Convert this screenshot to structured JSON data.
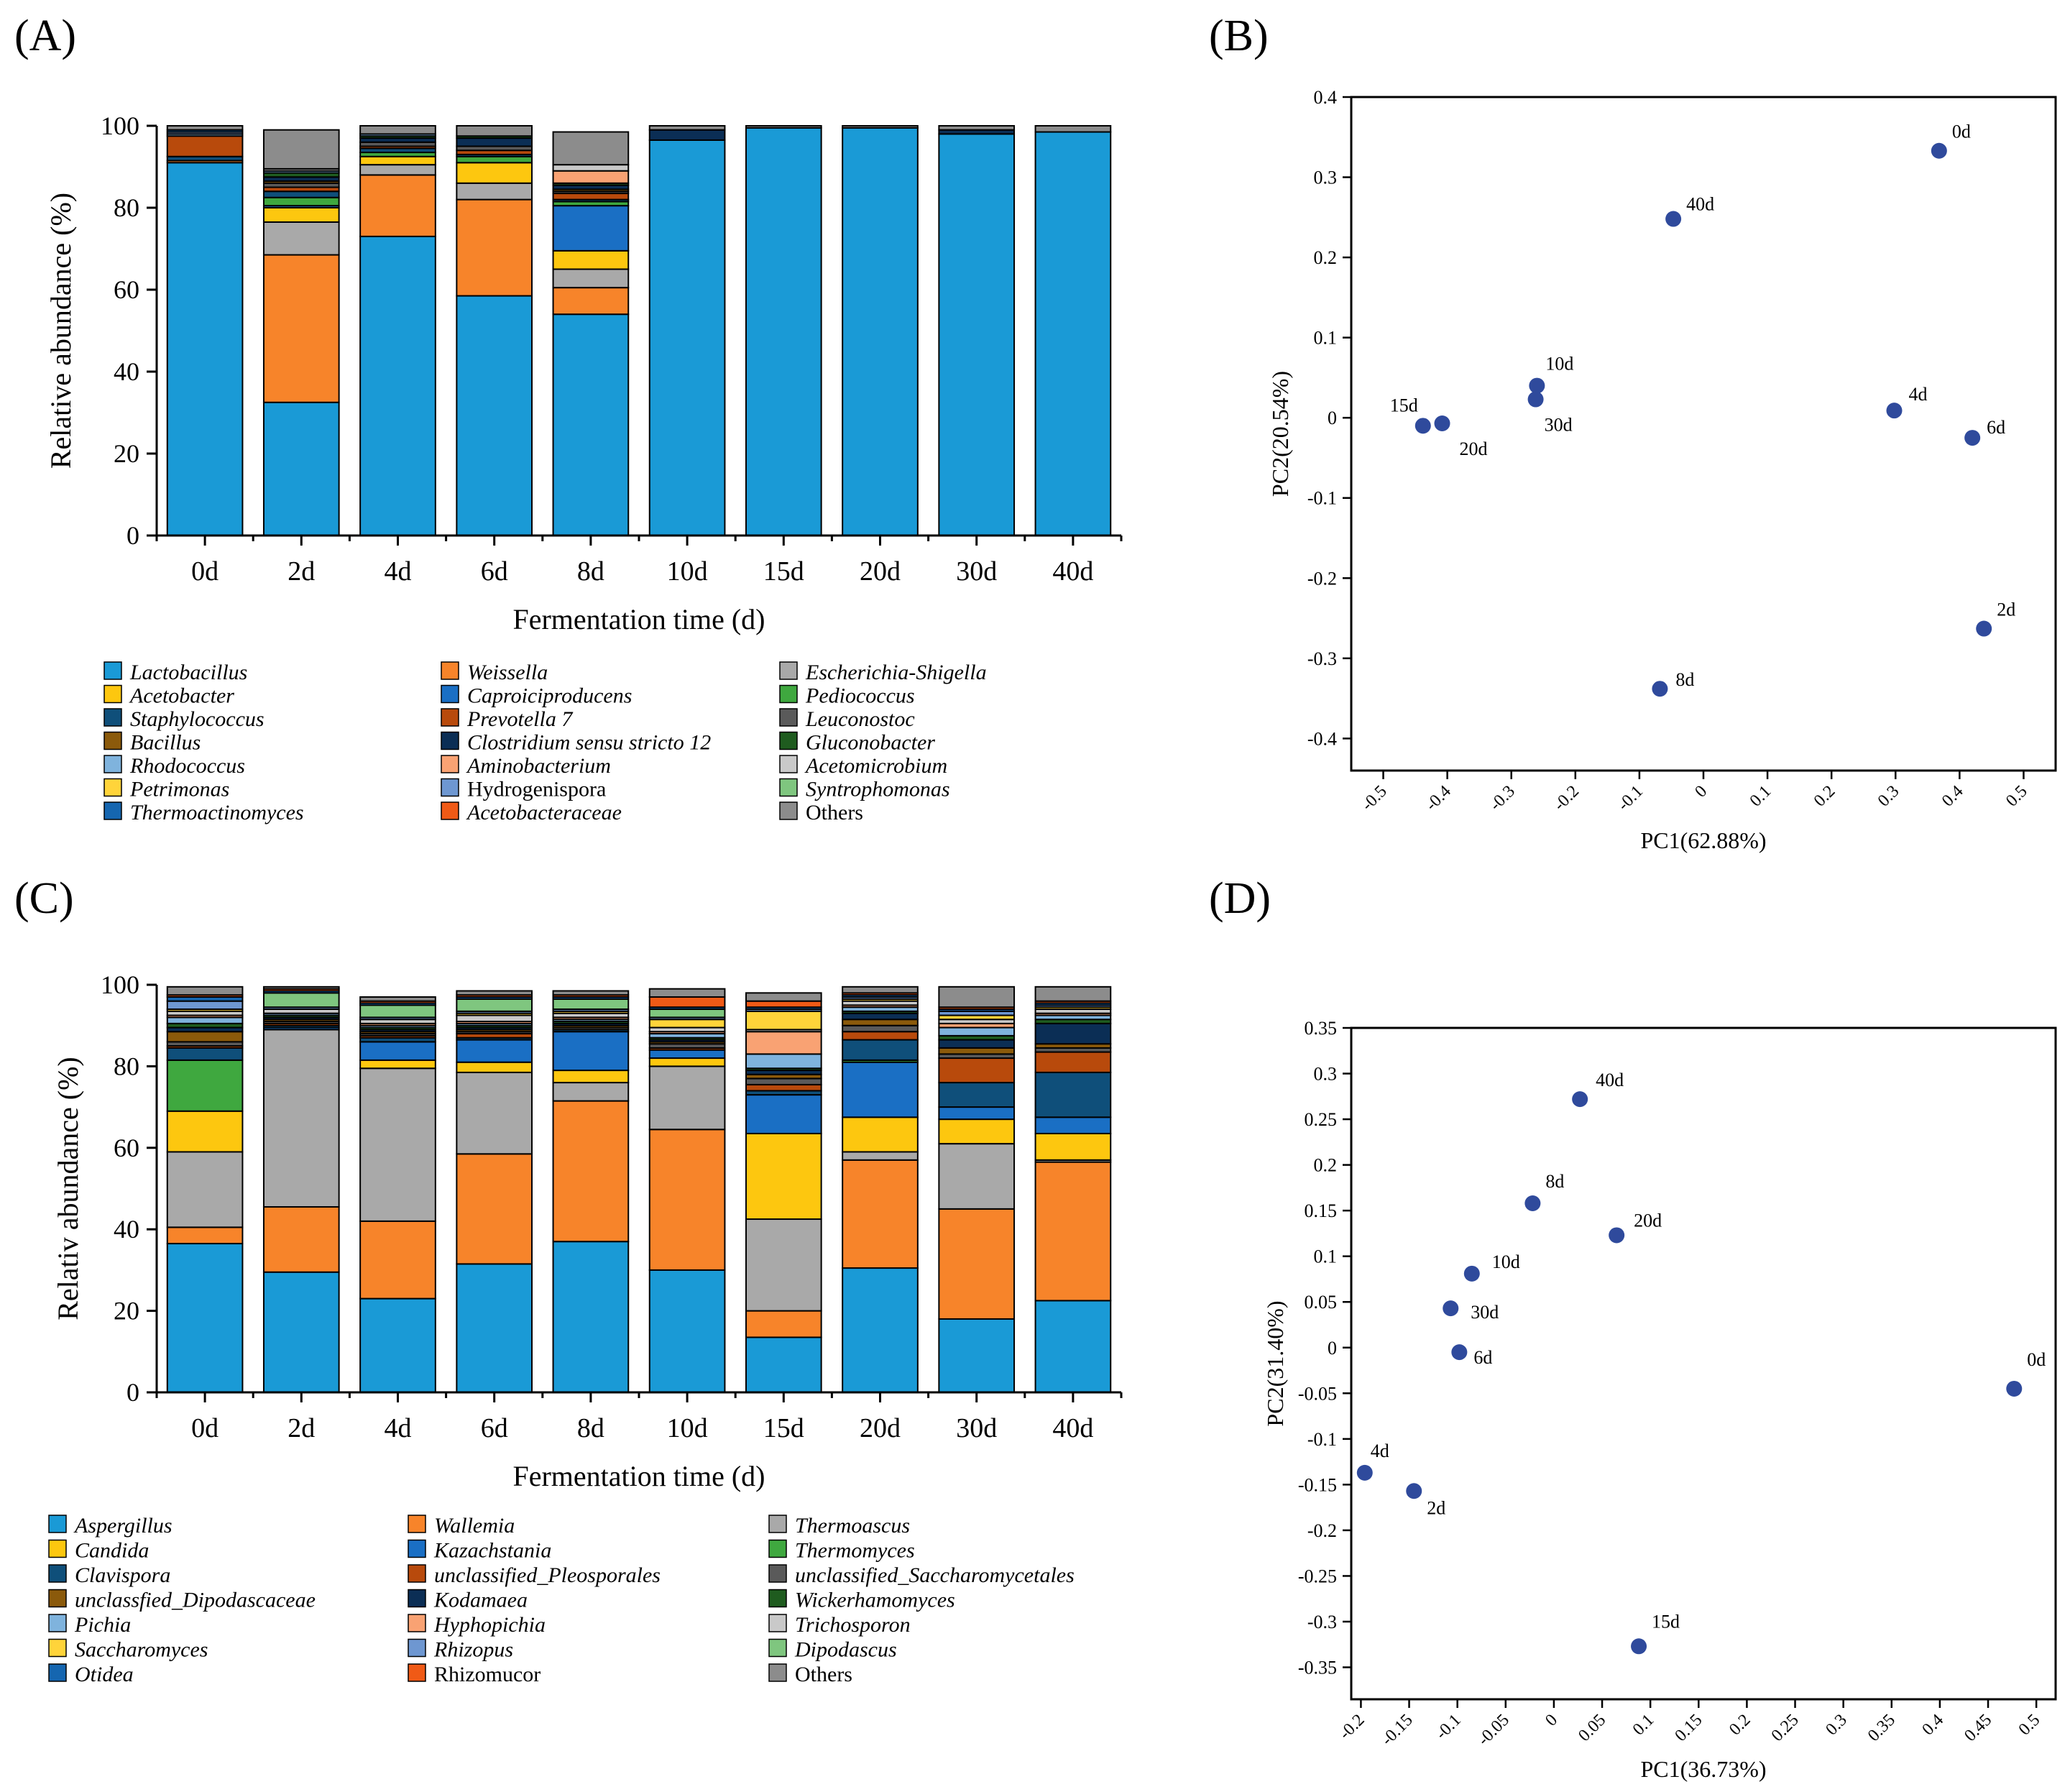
{
  "panel_labels": [
    "(A)",
    "(B)",
    "(C)",
    "(D)"
  ],
  "colors": {
    "axis": "#000000",
    "pcoa_point": "#2f4a9c"
  },
  "chart_data": [
    {
      "panel": "(A)",
      "type": "bar",
      "stacked": true,
      "xlabel": "Fermentation time (d)",
      "ylabel": "Relative abundance (%)",
      "ylim": [
        0,
        100
      ],
      "yticks": [
        0,
        20,
        40,
        60,
        80,
        100
      ],
      "categories": [
        "0d",
        "2d",
        "4d",
        "6d",
        "8d",
        "10d",
        "15d",
        "20d",
        "30d",
        "40d"
      ],
      "legend_columns": 3,
      "legend_placement": "below",
      "series": [
        {
          "name": "Lactobacillus",
          "italic": true,
          "color": "#1a9ad6",
          "values": [
            91,
            32.5,
            73,
            58.5,
            54,
            96.5,
            99.5,
            99.5,
            98,
            98.5
          ]
        },
        {
          "name": "Weissella",
          "italic": true,
          "color": "#f7842a",
          "values": [
            0.5,
            36,
            15,
            23.5,
            6.5,
            0,
            0,
            0,
            0,
            0
          ]
        },
        {
          "name": "Escherichia-Shigella",
          "italic": true,
          "color": "#a9a9a9",
          "values": [
            0,
            8,
            2.5,
            4,
            4.5,
            0,
            0,
            0,
            0,
            0
          ]
        },
        {
          "name": "Acetobacter",
          "italic": true,
          "color": "#fdc70f",
          "values": [
            0,
            3.5,
            2,
            5,
            4.5,
            0,
            0,
            0,
            0,
            0
          ]
        },
        {
          "name": "Caproiciproducens",
          "italic": true,
          "color": "#1a6fc4",
          "values": [
            0,
            0.5,
            0,
            0,
            11,
            0,
            0,
            0,
            0,
            0
          ]
        },
        {
          "name": "Pediococcus",
          "italic": true,
          "color": "#3fa83f",
          "values": [
            0,
            2,
            1,
            1.5,
            1,
            0,
            0,
            0,
            0,
            0
          ]
        },
        {
          "name": "Staphylococcus",
          "italic": true,
          "color": "#0f4f7a",
          "values": [
            1,
            1.5,
            1,
            0.5,
            0.5,
            0,
            0,
            0,
            0,
            0
          ]
        },
        {
          "name": "Prevotella 7",
          "italic": true,
          "color": "#b84a0c",
          "values": [
            5,
            1,
            0.5,
            1,
            1.5,
            0,
            0,
            0,
            0,
            0
          ]
        },
        {
          "name": "Leuconostoc",
          "italic": true,
          "color": "#5a5a5a",
          "values": [
            0,
            1,
            1,
            1,
            0.5,
            0,
            0,
            0,
            0,
            0
          ]
        },
        {
          "name": "Bacillus",
          "italic": true,
          "color": "#8b5a0b",
          "values": [
            0,
            0.5,
            0,
            0,
            0.5,
            0,
            0,
            0,
            0,
            0
          ]
        },
        {
          "name": "Clostridium sensu stricto 12",
          "italic": true,
          "color": "#0b2e55",
          "values": [
            0,
            1,
            1,
            2,
            1,
            2.5,
            0,
            0,
            1,
            0
          ]
        },
        {
          "name": "Gluconobacter",
          "italic": true,
          "color": "#1f5c1f",
          "values": [
            0,
            1,
            0.5,
            0.5,
            0.5,
            0,
            0,
            0,
            0,
            0
          ]
        },
        {
          "name": "Rhodococcus",
          "italic": true,
          "color": "#7fb3dd",
          "values": [
            0.5,
            0.5,
            0.5,
            0,
            0,
            0,
            0,
            0,
            0,
            0
          ]
        },
        {
          "name": "Aminobacterium",
          "italic": true,
          "color": "#f9a273",
          "values": [
            0,
            0,
            0,
            0,
            3,
            0,
            0,
            0,
            0,
            0
          ]
        },
        {
          "name": "Acetomicrobium",
          "italic": true,
          "color": "#c9c9c9",
          "values": [
            0,
            0.5,
            0,
            0,
            1.5,
            0,
            0,
            0,
            0,
            0
          ]
        },
        {
          "name": "Petrimonas",
          "italic": true,
          "color": "#ffd43a",
          "values": [
            0,
            0,
            0,
            0,
            0,
            0,
            0,
            0,
            0,
            0
          ]
        },
        {
          "name": "Hydrogenispora",
          "italic": false,
          "color": "#6e97d1",
          "values": [
            0.5,
            0,
            0,
            0,
            0,
            0,
            0,
            0,
            0,
            0
          ]
        },
        {
          "name": "Syntrophomonas",
          "italic": true,
          "color": "#7fc67f",
          "values": [
            0,
            0,
            0,
            0,
            0,
            0,
            0,
            0,
            0,
            0
          ]
        },
        {
          "name": "Thermoactinomyces",
          "italic": true,
          "color": "#1566b0",
          "values": [
            0.5,
            0,
            0,
            0,
            0,
            0,
            0,
            0,
            0,
            0
          ]
        },
        {
          "name": "Acetobacteraceae",
          "italic": true,
          "color": "#f05a16",
          "values": [
            0,
            0,
            0,
            0,
            0,
            0,
            0,
            0,
            0,
            0
          ]
        },
        {
          "name": "Others",
          "italic": false,
          "color": "#8c8c8c",
          "values": [
            1,
            9.5,
            2,
            2.5,
            8,
            1,
            0.5,
            0.5,
            1,
            1.5
          ]
        }
      ]
    },
    {
      "panel": "(B)",
      "type": "scatter",
      "xlabel": "PC1(62.88%)",
      "ylabel": "PC2(20.54%)",
      "xlim": [
        -0.55,
        0.55
      ],
      "ylim": [
        -0.44,
        0.4
      ],
      "xticks": [
        "-0.5",
        "-0.4",
        "-0.3",
        "-0.2",
        "-0.1",
        "0",
        "0.1",
        "0.2",
        "0.3",
        "0.4",
        "0.5"
      ],
      "yticks": [
        "0.4",
        "0.3",
        "0.2",
        "0.1",
        "0",
        "-0.1",
        "-0.2",
        "-0.3",
        "-0.4"
      ],
      "points": [
        {
          "label": "0d",
          "x": 0.368,
          "y": 0.333
        },
        {
          "label": "2d",
          "x": 0.438,
          "y": -0.263
        },
        {
          "label": "4d",
          "x": 0.298,
          "y": 0.009
        },
        {
          "label": "6d",
          "x": 0.42,
          "y": -0.025
        },
        {
          "label": "8d",
          "x": -0.068,
          "y": -0.338
        },
        {
          "label": "10d",
          "x": -0.26,
          "y": 0.04
        },
        {
          "label": "15d",
          "x": -0.438,
          "y": -0.01
        },
        {
          "label": "20d",
          "x": -0.408,
          "y": -0.007
        },
        {
          "label": "30d",
          "x": -0.262,
          "y": 0.023
        },
        {
          "label": "40d",
          "x": -0.047,
          "y": 0.248
        }
      ]
    },
    {
      "panel": "(C)",
      "type": "bar",
      "stacked": true,
      "xlabel": "Fermentation time (d)",
      "ylabel": "Relativ abundance (%)",
      "ylim": [
        0,
        100
      ],
      "yticks": [
        0,
        20,
        40,
        60,
        80,
        100
      ],
      "categories": [
        "0d",
        "2d",
        "4d",
        "6d",
        "8d",
        "10d",
        "15d",
        "20d",
        "30d",
        "40d"
      ],
      "legend_columns": 3,
      "legend_placement": "below",
      "series": [
        {
          "name": "Aspergillus",
          "italic": true,
          "color": "#1a9ad6",
          "values": [
            36.5,
            29.5,
            23,
            31.5,
            37,
            30,
            13.5,
            30.5,
            18,
            22.5
          ]
        },
        {
          "name": "Wallemia",
          "italic": true,
          "color": "#f7842a",
          "values": [
            4,
            16,
            19,
            27,
            34.5,
            34.5,
            6.5,
            26.5,
            27,
            34
          ]
        },
        {
          "name": "Thermoascus",
          "italic": true,
          "color": "#a9a9a9",
          "values": [
            18.5,
            43.5,
            37.5,
            20,
            4.5,
            15.5,
            22.5,
            2,
            16,
            0.5
          ]
        },
        {
          "name": "Candida",
          "italic": true,
          "color": "#fdc70f",
          "values": [
            10,
            0,
            2,
            2.5,
            3,
            2,
            21,
            8.5,
            6,
            6.5
          ]
        },
        {
          "name": "Kazachstania",
          "italic": true,
          "color": "#1a6fc4",
          "values": [
            0,
            0.5,
            4.5,
            5.5,
            9.5,
            2,
            9.5,
            13.5,
            3,
            4
          ]
        },
        {
          "name": "Thermomyces",
          "italic": true,
          "color": "#3fa83f",
          "values": [
            12.5,
            0,
            0,
            0,
            0,
            0,
            0,
            0.5,
            0,
            0
          ]
        },
        {
          "name": "Clavispora",
          "italic": true,
          "color": "#0f4f7a",
          "values": [
            3,
            0.5,
            1,
            0.5,
            0.5,
            0,
            1,
            5,
            6,
            11
          ]
        },
        {
          "name": "unclassified_Pleosporales",
          "italic": true,
          "color": "#b84a0c",
          "values": [
            0.5,
            0.5,
            0.5,
            1,
            0,
            0.5,
            1.5,
            2,
            6,
            5
          ]
        },
        {
          "name": "unclassified_Saccharomycetales",
          "italic": true,
          "color": "#5a5a5a",
          "values": [
            1,
            0.5,
            0.5,
            0.5,
            0.5,
            1,
            1.5,
            1.5,
            1,
            1
          ]
        },
        {
          "name": "unclassfied_Dipodascaceae",
          "italic": true,
          "color": "#8b5a0b",
          "values": [
            2.5,
            0.5,
            0.5,
            0.5,
            0.5,
            0.5,
            1,
            1.5,
            1.5,
            1
          ]
        },
        {
          "name": "Kodamaea",
          "italic": true,
          "color": "#0b2e55",
          "values": [
            1,
            0.5,
            0.5,
            0.5,
            0.5,
            0.5,
            1,
            1.5,
            2,
            5
          ]
        },
        {
          "name": "Wickerhamomyces",
          "italic": true,
          "color": "#1f5c1f",
          "values": [
            1,
            0.5,
            0.5,
            0.5,
            0.5,
            0.5,
            0.5,
            0.5,
            1,
            1
          ]
        },
        {
          "name": "Pichia",
          "italic": true,
          "color": "#7fb3dd",
          "values": [
            1.5,
            0.5,
            0.5,
            0.5,
            0.5,
            1,
            3.5,
            1,
            2,
            1
          ]
        },
        {
          "name": "Hyphopichia",
          "italic": true,
          "color": "#f9a273",
          "values": [
            0.5,
            0,
            0.5,
            0.5,
            0.5,
            0.5,
            5.5,
            0.5,
            1,
            0.5
          ]
        },
        {
          "name": "Trichosporon",
          "italic": true,
          "color": "#c9c9c9",
          "values": [
            1,
            1,
            1,
            1.5,
            1,
            1,
            0.5,
            1,
            1,
            1
          ]
        },
        {
          "name": "Saccharomyces",
          "italic": true,
          "color": "#ffd43a",
          "values": [
            0.5,
            0,
            0,
            0.5,
            0.5,
            2,
            4.5,
            0.5,
            1,
            0.5
          ]
        },
        {
          "name": "Rhizopus",
          "italic": true,
          "color": "#6e97d1",
          "values": [
            2,
            0.5,
            0.5,
            0.5,
            0.5,
            0.5,
            0.5,
            0.5,
            1,
            0.5
          ]
        },
        {
          "name": "Dipodascus",
          "italic": true,
          "color": "#7fc67f",
          "values": [
            0,
            3.5,
            3,
            3,
            2.5,
            2,
            0,
            0,
            0,
            0
          ]
        },
        {
          "name": "Otidea",
          "italic": true,
          "color": "#1566b0",
          "values": [
            1,
            0.5,
            0.5,
            0.5,
            0.5,
            0.5,
            0.5,
            0.5,
            0.5,
            0.5
          ]
        },
        {
          "name": "Rhizomucor",
          "italic": false,
          "color": "#f05a16",
          "values": [
            0.5,
            0.5,
            0.5,
            0.5,
            0.5,
            2.5,
            1.5,
            0.5,
            0.5,
            0.5
          ]
        },
        {
          "name": "Others",
          "italic": false,
          "color": "#8c8c8c",
          "values": [
            2,
            0.5,
            1,
            1,
            1,
            2,
            2,
            1.5,
            5,
            3.5
          ]
        }
      ]
    },
    {
      "panel": "(D)",
      "type": "scatter",
      "xlabel": "PC1(36.73%)",
      "ylabel": "PC2(31.40%)",
      "xlim": [
        -0.21,
        0.52
      ],
      "ylim": [
        -0.385,
        0.35
      ],
      "xticks": [
        "-0.2",
        "-0.15",
        "-0.1",
        "-0.05",
        "0",
        "0.05",
        "0.1",
        "0.15",
        "0.2",
        "0.25",
        "0.3",
        "0.35",
        "0.4",
        "0.45",
        "0.5"
      ],
      "yticks": [
        "0.35",
        "0.3",
        "0.25",
        "0.2",
        "0.15",
        "0.1",
        "0.05",
        "0",
        "-0.05",
        "-0.1",
        "-0.15",
        "-0.2",
        "-0.25",
        "-0.3",
        "-0.35"
      ],
      "points": [
        {
          "label": "0d",
          "x": 0.477,
          "y": -0.045
        },
        {
          "label": "2d",
          "x": -0.145,
          "y": -0.157
        },
        {
          "label": "4d",
          "x": -0.196,
          "y": -0.137
        },
        {
          "label": "6d",
          "x": -0.098,
          "y": -0.005
        },
        {
          "label": "8d",
          "x": -0.022,
          "y": 0.158
        },
        {
          "label": "10d",
          "x": -0.085,
          "y": 0.081
        },
        {
          "label": "15d",
          "x": 0.088,
          "y": -0.327
        },
        {
          "label": "20d",
          "x": 0.065,
          "y": 0.123
        },
        {
          "label": "30d",
          "x": -0.107,
          "y": 0.043
        },
        {
          "label": "40d",
          "x": 0.027,
          "y": 0.272
        }
      ]
    }
  ]
}
